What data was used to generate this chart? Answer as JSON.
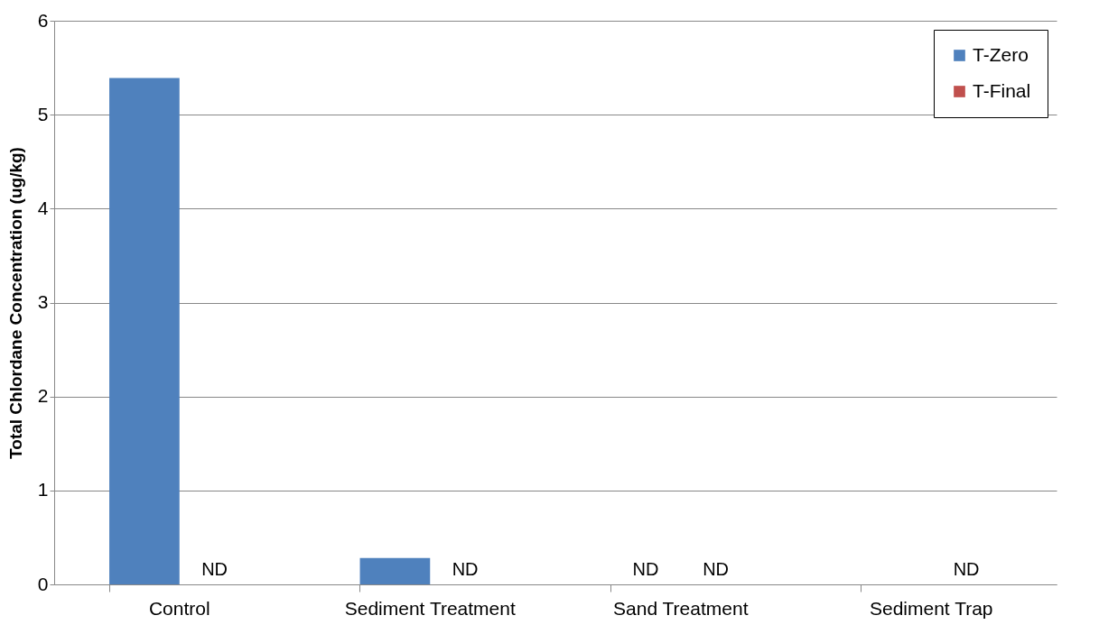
{
  "chart_data": {
    "type": "bar",
    "ylabel": "Total Chlordane Concentration (ug/kg)",
    "categories": [
      "Control",
      "Sediment Treatment",
      "Sand Treatment",
      "Sediment Trap"
    ],
    "series": [
      {
        "name": "T-Zero",
        "color": "#4f81bd",
        "values": [
          5.39,
          0.28,
          null,
          null
        ],
        "value_labels": [
          null,
          null,
          "ND",
          null
        ]
      },
      {
        "name": "T-Final",
        "color": "#c0504d",
        "values": [
          null,
          null,
          null,
          null
        ],
        "value_labels": [
          "ND",
          "ND",
          "ND",
          "ND"
        ]
      }
    ],
    "ylim": [
      0,
      6
    ],
    "yticks": [
      0,
      1,
      2,
      3,
      4,
      5,
      6
    ],
    "grid": "y",
    "legend": "top right"
  }
}
